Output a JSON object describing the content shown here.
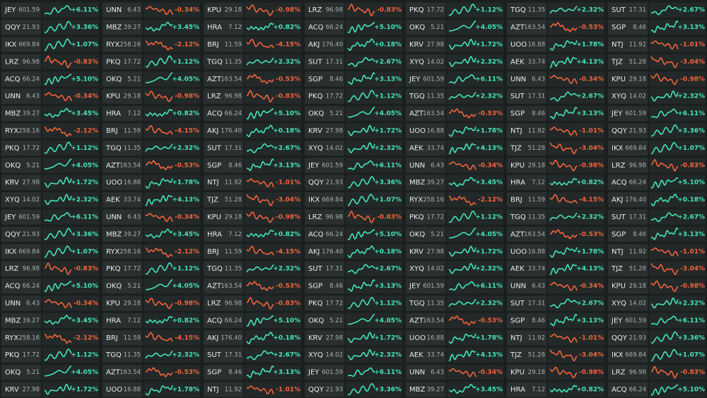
{
  "quotes": {
    "JEY": {
      "price": "601.59",
      "change": "+6.11%"
    },
    "QQY": {
      "price": "21.93",
      "change": "+3.36%"
    },
    "IKX": {
      "price": "669.84",
      "change": "+1.07%"
    },
    "LRZ": {
      "price": "96.98",
      "change": "-0.83%"
    },
    "ACQ": {
      "price": "66.24",
      "change": "+5.10%"
    },
    "UNN": {
      "price": "6.43",
      "change": "-0.34%"
    },
    "MBZ": {
      "price": "39.27",
      "change": "+3.45%"
    },
    "RYX": {
      "price": "258.16",
      "change": "-2.12%"
    },
    "PKQ": {
      "price": "17.72",
      "change": "+1.12%"
    },
    "OKQ": {
      "price": "5.21",
      "change": "+4.05%"
    },
    "KRV": {
      "price": "27.98",
      "change": "+1.72%"
    },
    "XYQ": {
      "price": "14.02",
      "change": "+2.32%"
    },
    "KPU": {
      "price": "29.18",
      "change": "-0.98%"
    },
    "HRA": {
      "price": "7.12",
      "change": "+0.82%"
    },
    "BRJ": {
      "price": "11.59",
      "change": "-4.15%"
    },
    "TGQ": {
      "price": "11.35",
      "change": "+2.32%"
    },
    "AZT": {
      "price": "163.54",
      "change": "-0.53%"
    },
    "UOO": {
      "price": "16.88",
      "change": "+1.78%"
    },
    "AEK": {
      "price": "33.74",
      "change": "+4.13%"
    },
    "AKJ": {
      "price": "176.40",
      "change": "+0.18%"
    },
    "SUT": {
      "price": "17.31",
      "change": "+2.67%"
    },
    "SGP": {
      "price": "8.46",
      "change": "+3.13%"
    },
    "NTJ": {
      "price": "11.92",
      "change": "-1.01%"
    },
    "TJZ": {
      "price": "51.28",
      "change": "-3.04%"
    }
  },
  "grid": [
    [
      "JEY",
      "QQY",
      "IKX",
      "LRZ",
      "ACQ",
      "UNN",
      "MBZ",
      "RYX",
      "PKQ",
      "OKQ",
      "KRV",
      "XYQ",
      "JEY",
      "QQY",
      "IKX",
      "LRZ",
      "ACQ",
      "UNN",
      "MBZ",
      "RYX",
      "PKQ",
      "OKQ",
      "KRV"
    ],
    [
      "UNN",
      "MBZ",
      "RYX",
      "PKQ",
      "OKQ",
      "KPU",
      "HRA",
      "BRJ",
      "TGQ",
      "AZT",
      "UOO",
      "AEK",
      "UNN",
      "MBZ",
      "RYX",
      "PKQ",
      "OKQ",
      "KPU",
      "HRA",
      "BRJ",
      "TGQ",
      "AZT",
      "UOO"
    ],
    [
      "KPU",
      "HRA",
      "BRJ",
      "TGQ",
      "AZT",
      "LRZ",
      "ACQ",
      "AKJ",
      "SUT",
      "SGP",
      "NTJ",
      "TJZ",
      "KPU",
      "HRA",
      "BRJ",
      "TGQ",
      "AZT",
      "LRZ",
      "ACQ",
      "AKJ",
      "SUT",
      "SGP",
      "NTJ"
    ],
    [
      "LRZ",
      "ACQ",
      "AKJ",
      "SUT",
      "SGP",
      "PKQ",
      "OKQ",
      "KRV",
      "XYQ",
      "JEY",
      "QQY",
      "IKX",
      "LRZ",
      "ACQ",
      "AKJ",
      "SUT",
      "SGP",
      "PKQ",
      "OKQ",
      "KRV",
      "XYQ",
      "JEY",
      "QQY"
    ],
    [
      "PKQ",
      "OKQ",
      "KRV",
      "XYQ",
      "JEY",
      "TGQ",
      "AZT",
      "UOO",
      "AEK",
      "UNN",
      "MBZ",
      "RYX",
      "PKQ",
      "OKQ",
      "KRV",
      "XYQ",
      "JEY",
      "TGQ",
      "AZT",
      "UOO",
      "AEK",
      "UNN",
      "MBZ"
    ],
    [
      "TGQ",
      "AZT",
      "UOO",
      "AEK",
      "UNN",
      "SUT",
      "SGP",
      "NTJ",
      "TJZ",
      "KPU",
      "HRA",
      "BRJ",
      "TGQ",
      "AZT",
      "UOO",
      "AEK",
      "UNN",
      "SUT",
      "SGP",
      "NTJ",
      "TJZ",
      "KPU",
      "HRA"
    ],
    [
      "SUT",
      "SGP",
      "NTJ",
      "TJZ",
      "KPU",
      "XYQ",
      "JEY",
      "QQY",
      "IKX",
      "LRZ",
      "ACQ",
      "AKJ",
      "SUT",
      "SGP",
      "NTJ",
      "TJZ",
      "KPU",
      "XYQ",
      "JEY",
      "QQY",
      "IKX",
      "LRZ",
      "ACQ"
    ]
  ]
}
